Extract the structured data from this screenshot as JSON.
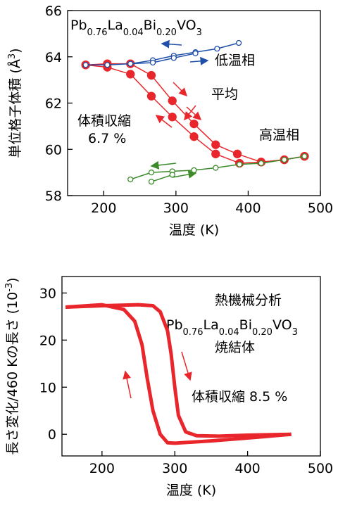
{
  "chart_data": [
    {
      "type": "line",
      "formula": [
        "Pb",
        "0.76",
        "La",
        "0.04",
        "Bi",
        "0.20",
        "VO",
        "3"
      ],
      "xlabel": "温度 (K)",
      "ylabel": [
        "単位格子体積 (Å",
        "3",
        ")"
      ],
      "xlim": [
        150,
        500
      ],
      "ylim": [
        58,
        66
      ],
      "xticks": [
        200,
        300,
        400,
        500
      ],
      "yticks": [
        58,
        60,
        62,
        64,
        66
      ],
      "annotations": [
        {
          "text": "低温相",
          "color": "#1f4fa8"
        },
        {
          "text": "平均",
          "color": "#e8262b"
        },
        {
          "text": "体積収縮",
          "color": "#000000"
        },
        {
          "text": "6.7 %",
          "color": "#000000"
        },
        {
          "text": "高温相",
          "color": "#3b8a2a"
        }
      ],
      "series": [
        {
          "color": "#e8262b",
          "marker": "filled",
          "x": [
            175,
            205,
            237,
            266,
            295,
            325,
            355,
            385,
            418,
            450,
            478
          ],
          "values": [
            63.65,
            63.7,
            63.7,
            63.2,
            62.1,
            61.1,
            60.2,
            59.8,
            59.45,
            59.55,
            59.7
          ]
        },
        {
          "color": "#e8262b",
          "marker": "filled",
          "x": [
            478,
            450,
            418,
            388,
            355,
            325,
            295,
            266,
            237,
            205,
            175
          ],
          "values": [
            59.7,
            59.55,
            59.45,
            59.4,
            59.8,
            60.55,
            61.4,
            62.3,
            63.25,
            63.55,
            63.65
          ]
        },
        {
          "color": "#1f4fa8",
          "marker": "open",
          "x": [
            175,
            205,
            237,
            268,
            297,
            327,
            357,
            387
          ],
          "values": [
            63.65,
            63.65,
            63.7,
            63.85,
            64.05,
            64.2,
            64.35,
            64.6
          ]
        },
        {
          "color": "#1f4fa8",
          "marker": "open",
          "x": [
            237,
            268,
            297,
            327
          ],
          "values": [
            63.7,
            63.75,
            63.95,
            64.15
          ]
        },
        {
          "color": "#3b8a2a",
          "marker": "open",
          "x": [
            237,
            266,
            295,
            325,
            355,
            388,
            418,
            450,
            478
          ],
          "values": [
            58.7,
            59.0,
            59.05,
            59.1,
            59.2,
            59.35,
            59.4,
            59.55,
            59.7
          ]
        },
        {
          "color": "#3b8a2a",
          "marker": "open",
          "x": [
            266,
            295
          ],
          "values": [
            58.6,
            58.9
          ]
        }
      ]
    },
    {
      "type": "line",
      "formula": [
        "Pb",
        "0.76",
        "La",
        "0.04",
        "Bi",
        "0.20",
        "VO",
        "3"
      ],
      "xlabel": "温度 (K)",
      "ylabel": [
        "長さ変化/460 Kの長さ (10",
        "-3",
        ")"
      ],
      "xlim": [
        145,
        500
      ],
      "ylim": [
        -4.6,
        33.5
      ],
      "xticks": [
        200,
        300,
        400,
        500
      ],
      "yticks": [
        0,
        10,
        20,
        30
      ],
      "annotations": [
        {
          "text": "熱機械分析",
          "color": "#000000"
        },
        {
          "text": "焼結体",
          "color": "#000000"
        },
        {
          "text": "体積収縮 8.5 %",
          "color": "#000000"
        }
      ],
      "series": [
        {
          "color": "#e8262b",
          "marker": "none",
          "x": [
            150,
            200,
            250,
            270,
            280,
            290,
            295,
            300,
            305,
            315,
            330,
            360,
            400,
            460
          ],
          "values": [
            27,
            27.3,
            27.5,
            27.3,
            26,
            22,
            17,
            10,
            4,
            0.5,
            -0.3,
            -0.4,
            -0.2,
            0
          ]
        },
        {
          "color": "#e8262b",
          "marker": "none",
          "x": [
            460,
            400,
            350,
            300,
            290,
            280,
            270,
            262,
            255,
            245,
            230,
            200,
            150
          ],
          "values": [
            0,
            -0.8,
            -1.4,
            -1.9,
            -1.8,
            0,
            5,
            12,
            19,
            24,
            26.5,
            27.5,
            27
          ]
        }
      ]
    }
  ]
}
